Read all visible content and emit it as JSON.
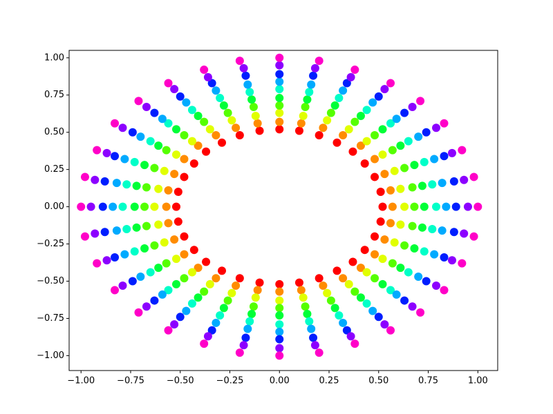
{
  "chart_data": {
    "type": "scatter",
    "xlim": [
      -1.06,
      1.1
    ],
    "ylim": [
      -1.1,
      1.05
    ],
    "xticks": [
      {
        "value": -1,
        "label": "−1.00"
      },
      {
        "value": -0.75,
        "label": "−0.75"
      },
      {
        "value": -0.5,
        "label": "−0.50"
      },
      {
        "value": -0.25,
        "label": "−0.25"
      },
      {
        "value": 0,
        "label": "0.00"
      },
      {
        "value": 0.25,
        "label": "0.25"
      },
      {
        "value": 0.5,
        "label": "0.50"
      },
      {
        "value": 0.75,
        "label": "0.75"
      },
      {
        "value": 1,
        "label": "1.00"
      }
    ],
    "yticks": [
      {
        "value": -1,
        "label": "−1.00"
      },
      {
        "value": -0.75,
        "label": "−0.75"
      },
      {
        "value": -0.5,
        "label": "−0.50"
      },
      {
        "value": -0.25,
        "label": "−0.25"
      },
      {
        "value": 0,
        "label": "0.00"
      },
      {
        "value": 0.25,
        "label": "0.25"
      },
      {
        "value": 0.5,
        "label": "0.50"
      },
      {
        "value": 0.75,
        "label": "0.75"
      },
      {
        "value": 1,
        "label": "1.00"
      }
    ],
    "series": [
      {
        "color": "#ff0000",
        "x": [
          0.52,
          0.51,
          0.48,
          0.43,
          0.37,
          0.29,
          0.2,
          0.1,
          0,
          -0.1,
          -0.2,
          -0.29,
          -0.37,
          -0.43,
          -0.48,
          -0.51,
          -0.52,
          -0.51,
          -0.48,
          -0.43,
          -0.37,
          -0.29,
          -0.2,
          -0.1,
          0,
          0.1,
          0.2,
          0.29,
          0.37,
          0.43,
          0.48,
          0.51
        ],
        "values": [
          0,
          0.1,
          0.2,
          0.29,
          0.37,
          0.43,
          0.48,
          0.51,
          0.52,
          0.51,
          0.48,
          0.43,
          0.37,
          0.29,
          0.2,
          0.1,
          0,
          -0.1,
          -0.2,
          -0.29,
          -0.37,
          -0.43,
          -0.48,
          -0.51,
          -0.52,
          -0.51,
          -0.48,
          -0.43,
          -0.37,
          -0.29,
          -0.2,
          -0.1
        ]
      },
      {
        "color": "#ff8c00",
        "x": [
          0.57,
          0.56,
          0.53,
          0.48,
          0.41,
          0.32,
          0.22,
          0.11,
          0,
          -0.11,
          -0.22,
          -0.32,
          -0.41,
          -0.48,
          -0.53,
          -0.56,
          -0.57,
          -0.56,
          -0.53,
          -0.48,
          -0.41,
          -0.32,
          -0.22,
          -0.11,
          0,
          0.11,
          0.22,
          0.32,
          0.41,
          0.48,
          0.53,
          0.56
        ],
        "values": [
          0,
          0.11,
          0.22,
          0.32,
          0.41,
          0.48,
          0.53,
          0.56,
          0.57,
          0.56,
          0.53,
          0.48,
          0.41,
          0.32,
          0.22,
          0.11,
          0,
          -0.11,
          -0.22,
          -0.32,
          -0.41,
          -0.48,
          -0.53,
          -0.56,
          -0.57,
          -0.56,
          -0.53,
          -0.48,
          -0.41,
          -0.32,
          -0.22,
          -0.11
        ]
      },
      {
        "color": "#e1ff00",
        "x": [
          0.63,
          0.61,
          0.58,
          0.52,
          0.44,
          0.35,
          0.24,
          0.12,
          0,
          -0.12,
          -0.24,
          -0.35,
          -0.44,
          -0.52,
          -0.58,
          -0.61,
          -0.63,
          -0.61,
          -0.58,
          -0.52,
          -0.44,
          -0.35,
          -0.24,
          -0.12,
          0,
          0.12,
          0.24,
          0.35,
          0.44,
          0.52,
          0.58,
          0.61
        ],
        "values": [
          0,
          0.12,
          0.24,
          0.35,
          0.44,
          0.52,
          0.58,
          0.61,
          0.63,
          0.61,
          0.58,
          0.52,
          0.44,
          0.35,
          0.24,
          0.12,
          0,
          -0.12,
          -0.24,
          -0.35,
          -0.44,
          -0.52,
          -0.58,
          -0.61,
          -0.63,
          -0.61,
          -0.58,
          -0.52,
          -0.44,
          -0.35,
          -0.24,
          -0.12
        ]
      },
      {
        "color": "#55ff00",
        "x": [
          0.68,
          0.67,
          0.63,
          0.57,
          0.48,
          0.38,
          0.26,
          0.13,
          0,
          -0.13,
          -0.26,
          -0.38,
          -0.48,
          -0.57,
          -0.63,
          -0.67,
          -0.68,
          -0.67,
          -0.63,
          -0.57,
          -0.48,
          -0.38,
          -0.26,
          -0.13,
          0,
          0.13,
          0.26,
          0.38,
          0.48,
          0.57,
          0.63,
          0.67
        ],
        "values": [
          0,
          0.13,
          0.26,
          0.38,
          0.48,
          0.57,
          0.63,
          0.67,
          0.68,
          0.67,
          0.63,
          0.57,
          0.48,
          0.38,
          0.26,
          0.13,
          0,
          -0.13,
          -0.26,
          -0.38,
          -0.48,
          -0.57,
          -0.63,
          -0.67,
          -0.68,
          -0.67,
          -0.63,
          -0.57,
          -0.48,
          -0.38,
          -0.26,
          -0.13
        ]
      },
      {
        "color": "#00ff37",
        "x": [
          0.73,
          0.72,
          0.68,
          0.61,
          0.52,
          0.41,
          0.28,
          0.14,
          0,
          -0.14,
          -0.28,
          -0.41,
          -0.52,
          -0.61,
          -0.68,
          -0.72,
          -0.73,
          -0.72,
          -0.68,
          -0.61,
          -0.52,
          -0.41,
          -0.28,
          -0.14,
          0,
          0.14,
          0.28,
          0.41,
          0.52,
          0.61,
          0.68,
          0.72
        ],
        "values": [
          0,
          0.14,
          0.28,
          0.41,
          0.52,
          0.61,
          0.68,
          0.72,
          0.73,
          0.72,
          0.68,
          0.61,
          0.52,
          0.41,
          0.28,
          0.14,
          0,
          -0.14,
          -0.28,
          -0.41,
          -0.52,
          -0.61,
          -0.68,
          -0.72,
          -0.73,
          -0.72,
          -0.68,
          -0.61,
          -0.52,
          -0.41,
          -0.28,
          -0.14
        ]
      },
      {
        "color": "#00ffc8",
        "x": [
          0.79,
          0.77,
          0.73,
          0.65,
          0.56,
          0.44,
          0.3,
          0.15,
          0,
          -0.15,
          -0.3,
          -0.44,
          -0.56,
          -0.65,
          -0.73,
          -0.77,
          -0.79,
          -0.77,
          -0.73,
          -0.65,
          -0.56,
          -0.44,
          -0.3,
          -0.15,
          0,
          0.15,
          0.3,
          0.44,
          0.56,
          0.65,
          0.73,
          0.77
        ],
        "values": [
          0,
          0.15,
          0.3,
          0.44,
          0.56,
          0.65,
          0.73,
          0.77,
          0.79,
          0.77,
          0.73,
          0.65,
          0.56,
          0.44,
          0.3,
          0.15,
          0,
          -0.15,
          -0.3,
          -0.44,
          -0.56,
          -0.65,
          -0.73,
          -0.77,
          -0.79,
          -0.77,
          -0.73,
          -0.65,
          -0.56,
          -0.44,
          -0.3,
          -0.15
        ]
      },
      {
        "color": "#00aaff",
        "x": [
          0.84,
          0.82,
          0.78,
          0.7,
          0.59,
          0.47,
          0.32,
          0.16,
          0,
          -0.16,
          -0.32,
          -0.47,
          -0.59,
          -0.7,
          -0.78,
          -0.82,
          -0.84,
          -0.82,
          -0.78,
          -0.7,
          -0.59,
          -0.47,
          -0.32,
          -0.16,
          0,
          0.16,
          0.32,
          0.47,
          0.59,
          0.7,
          0.78,
          0.82
        ],
        "values": [
          0,
          0.16,
          0.32,
          0.47,
          0.59,
          0.7,
          0.78,
          0.82,
          0.84,
          0.82,
          0.78,
          0.7,
          0.59,
          0.47,
          0.32,
          0.16,
          0,
          -0.16,
          -0.32,
          -0.47,
          -0.59,
          -0.7,
          -0.78,
          -0.82,
          -0.84,
          -0.82,
          -0.78,
          -0.7,
          -0.59,
          -0.47,
          -0.32,
          -0.16
        ]
      },
      {
        "color": "#001eff",
        "x": [
          0.89,
          0.88,
          0.83,
          0.74,
          0.63,
          0.5,
          0.34,
          0.17,
          0,
          -0.17,
          -0.34,
          -0.5,
          -0.63,
          -0.74,
          -0.83,
          -0.88,
          -0.89,
          -0.88,
          -0.83,
          -0.74,
          -0.63,
          -0.5,
          -0.34,
          -0.17,
          0,
          0.17,
          0.34,
          0.5,
          0.63,
          0.74,
          0.83,
          0.88
        ],
        "values": [
          0,
          0.17,
          0.34,
          0.5,
          0.63,
          0.74,
          0.83,
          0.88,
          0.89,
          0.88,
          0.83,
          0.74,
          0.63,
          0.5,
          0.34,
          0.17,
          0,
          -0.17,
          -0.34,
          -0.5,
          -0.63,
          -0.74,
          -0.83,
          -0.88,
          -0.89,
          -0.88,
          -0.83,
          -0.74,
          -0.63,
          -0.5,
          -0.34,
          -0.17
        ]
      },
      {
        "color": "#8c00ff",
        "x": [
          0.95,
          0.93,
          0.87,
          0.79,
          0.67,
          0.53,
          0.36,
          0.18,
          0,
          -0.18,
          -0.36,
          -0.53,
          -0.67,
          -0.79,
          -0.87,
          -0.93,
          -0.95,
          -0.93,
          -0.87,
          -0.79,
          -0.67,
          -0.53,
          -0.36,
          -0.18,
          0,
          0.18,
          0.36,
          0.53,
          0.67,
          0.79,
          0.87,
          0.93
        ],
        "values": [
          0,
          0.18,
          0.36,
          0.53,
          0.67,
          0.79,
          0.87,
          0.93,
          0.95,
          0.93,
          0.87,
          0.79,
          0.67,
          0.53,
          0.36,
          0.18,
          0,
          -0.18,
          -0.36,
          -0.53,
          -0.67,
          -0.79,
          -0.87,
          -0.93,
          -0.95,
          -0.93,
          -0.87,
          -0.79,
          -0.67,
          -0.53,
          -0.36,
          -0.18
        ]
      },
      {
        "color": "#ff00c8",
        "x": [
          1,
          0.98,
          0.92,
          0.83,
          0.71,
          0.56,
          0.38,
          0.2,
          0,
          -0.2,
          -0.38,
          -0.56,
          -0.71,
          -0.83,
          -0.92,
          -0.98,
          -1,
          -0.98,
          -0.92,
          -0.83,
          -0.71,
          -0.56,
          -0.38,
          -0.2,
          0,
          0.2,
          0.38,
          0.56,
          0.71,
          0.83,
          0.92,
          0.98
        ],
        "values": [
          0,
          0.2,
          0.38,
          0.56,
          0.71,
          0.83,
          0.92,
          0.98,
          1,
          0.98,
          0.92,
          0.83,
          0.71,
          0.56,
          0.38,
          0.2,
          0,
          -0.2,
          -0.38,
          -0.56,
          -0.71,
          -0.83,
          -0.92,
          -0.98,
          -1,
          -0.98,
          -0.92,
          -0.83,
          -0.71,
          -0.56,
          -0.38,
          -0.2
        ]
      }
    ]
  }
}
